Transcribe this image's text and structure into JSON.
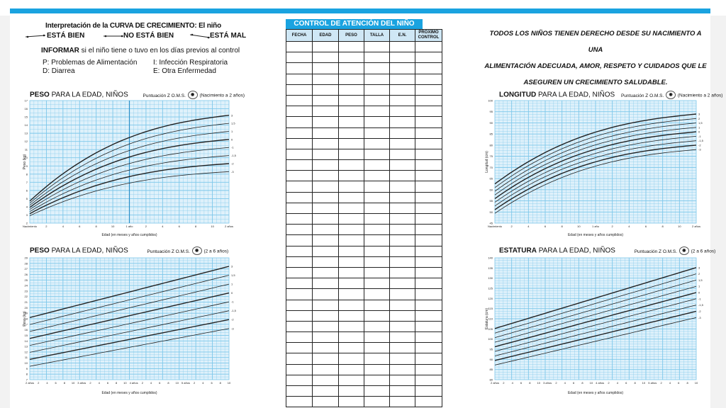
{
  "left": {
    "interpretation_title": "Interpretación de la CURVA DE CRECIMIENTO: El niño",
    "legend": [
      "ESTÁ BIEN",
      "NO ESTÁ BIEN",
      "ESTÁ MAL"
    ],
    "informar": {
      "bold": "INFORMAR",
      "rest": " si el niño tiene o tuvo en los días previos al control"
    },
    "codes_col1": [
      "P: Problemas de Alimentación",
      "D: Diarrea"
    ],
    "codes_col2": [
      "I: Infección Respiratoria",
      "E: Otra Enfermedad"
    ]
  },
  "charts": [
    {
      "id": "peso-0-2",
      "title_bold": "PESO",
      "title_rest": " PARA LA EDAD, NIÑOS",
      "score_label": "Puntuación Z O.M.S.",
      "range": "(Nacimiento a 2 años)",
      "xlabel": "Edad (en meses y años cumplidos)",
      "ylabel": "Peso (kg)",
      "xticks": [
        "Nacimiento",
        "2",
        "4",
        "6",
        "8",
        "10",
        "1 año",
        "2",
        "4",
        "6",
        "8",
        "10",
        "2 años"
      ],
      "yticks": [
        "2",
        "3",
        "4",
        "5",
        "6",
        "7",
        "8",
        "9",
        "10",
        "11",
        "12",
        "13",
        "14",
        "15",
        "16",
        "17"
      ],
      "zlabels": [
        "3",
        "1,5",
        "1",
        "0",
        "-1",
        "-1,5",
        "-2",
        "-3"
      ]
    },
    {
      "id": "peso-2-6",
      "title_bold": "PESO",
      "title_rest": " PARA LA EDAD, NIÑOS",
      "score_label": "Puntuación Z O.M.S.",
      "range": "(2 a 6 años)",
      "xlabel": "Edad (en meses y años cumplidos)",
      "ylabel": "Peso (kg)",
      "xticks": [
        "2 años",
        "2",
        "4",
        "6",
        "8",
        "10",
        "3 años",
        "2",
        "4",
        "6",
        "8",
        "10",
        "4 años",
        "2",
        "4",
        "6",
        "8",
        "10",
        "5 años",
        "2",
        "4",
        "6",
        "8",
        "10"
      ],
      "yticks": [
        "7",
        "8",
        "9",
        "10",
        "11",
        "12",
        "13",
        "14",
        "15",
        "16",
        "17",
        "18",
        "19",
        "20",
        "21",
        "22",
        "23",
        "24",
        "25",
        "26",
        "27",
        "28",
        "29"
      ],
      "zlabels": [
        "3",
        "1,5",
        "1",
        "0",
        "-1",
        "-1,5",
        "-2",
        "-3"
      ]
    },
    {
      "id": "longitud-0-2",
      "title_bold": "LONGITUD",
      "title_rest": " PARA LA EDAD, NIÑOS",
      "score_label": "Puntuación Z O.M.S.",
      "range": "(Nacimiento a 2 años)",
      "xlabel": "Edad (en meses y años cumplidos)",
      "ylabel": "Longitud (cm)",
      "xticks": [
        "Nacimiento",
        "2",
        "4",
        "6",
        "8",
        "10",
        "1 año",
        "2",
        "4",
        "6",
        "8",
        "10",
        "2 años"
      ],
      "yticks": [
        "45",
        "50",
        "55",
        "60",
        "65",
        "70",
        "75",
        "80",
        "85",
        "90",
        "95",
        "100"
      ],
      "zlabels": [
        "3",
        "2",
        "1,5",
        "1",
        "0",
        "-1",
        "-1,5",
        "-2",
        "-3"
      ]
    },
    {
      "id": "estatura-2-6",
      "title_bold": "ESTATURA",
      "title_rest": " PARA LA EDAD, NIÑOS",
      "score_label": "Puntuación Z O.M.S.",
      "range": "(2 a 6 años)",
      "xlabel": "Edad (en meses y años cumplidos)",
      "ylabel": "Estatura (cm)",
      "xticks": [
        "2 años",
        "2",
        "4",
        "6",
        "8",
        "10",
        "3 años",
        "2",
        "4",
        "6",
        "8",
        "10",
        "4 años",
        "2",
        "4",
        "6",
        "8",
        "10",
        "5 años",
        "2",
        "4",
        "6",
        "8",
        "10"
      ],
      "yticks": [
        "80",
        "85",
        "90",
        "95",
        "100",
        "105",
        "110",
        "115",
        "120",
        "125",
        "130",
        "135",
        "140"
      ],
      "zlabels": [
        "3",
        "2",
        "1,5",
        "1",
        "0",
        "-1",
        "-1,5",
        "-2",
        "-3"
      ]
    }
  ],
  "control": {
    "title": "CONTROL DE ATENCIÓN DEL NIÑO",
    "headers": [
      "FECHA",
      "EDAD",
      "PESO",
      "TALLA",
      "E.N.",
      "PRÓXIMO CONTROL"
    ],
    "row_count": 34
  },
  "rights_text": [
    "TODOS LOS NIÑOS TIENEN DERECHO DESDE SU NACIMIENTO A UNA",
    "ALIMENTACIÓN ADECUADA, AMOR, RESPETO Y CUIDADOS QUE LE",
    "ASEGUREN UN CRECIMIENTO SALUDABLE."
  ],
  "colors": {
    "accent": "#1aa3e0",
    "grid_bg": "#dff1fb",
    "grid_line": "#7cc7ea",
    "curve": "#222222"
  }
}
